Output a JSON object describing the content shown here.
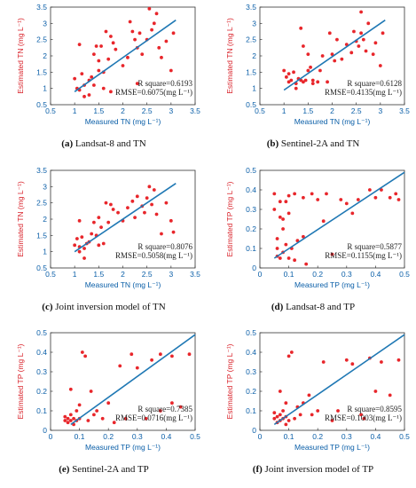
{
  "colors": {
    "points": "#e8262b",
    "fit_line": "#1f78b4",
    "axis_text": "#0b5fa8",
    "ylabel_text": "#d9222a"
  },
  "chart_data": [
    {
      "id": "a",
      "type": "scatter",
      "caption_letter": "(a)",
      "caption_text": " Landsat-8 and TN",
      "xlabel": "Measured TN (mg L⁻¹)",
      "ylabel": "Estimated TN (mg L⁻¹)",
      "xlim": [
        0.5,
        3.5
      ],
      "ylim": [
        0.5,
        3.5
      ],
      "xticks": [
        "0.5",
        "1",
        "1.5",
        "2",
        "2.5",
        "3",
        "3.5"
      ],
      "yticks": [
        "0.5",
        "1",
        "1.5",
        "2",
        "2.5",
        "3",
        "3.5"
      ],
      "fit_line": [
        [
          1.0,
          0.9
        ],
        [
          3.1,
          3.1
        ]
      ],
      "stats": [
        "R square=0.6193",
        "RMSE=0.6075(mg L⁻¹)"
      ],
      "points": [
        [
          1.0,
          1.3
        ],
        [
          1.05,
          1.0
        ],
        [
          1.1,
          0.95
        ],
        [
          1.15,
          1.45
        ],
        [
          1.2,
          1.1
        ],
        [
          1.3,
          1.25
        ],
        [
          1.35,
          1.35
        ],
        [
          1.4,
          2.05
        ],
        [
          1.45,
          2.3
        ],
        [
          1.5,
          1.55
        ],
        [
          1.5,
          1.85
        ],
        [
          1.55,
          2.3
        ],
        [
          1.6,
          1.5
        ],
        [
          1.65,
          2.75
        ],
        [
          1.7,
          1.9
        ],
        [
          1.75,
          2.6
        ],
        [
          1.8,
          2.4
        ],
        [
          1.85,
          2.2
        ],
        [
          1.1,
          2.35
        ],
        [
          1.2,
          0.75
        ],
        [
          1.3,
          0.8
        ],
        [
          1.4,
          1.1
        ],
        [
          2.0,
          1.7
        ],
        [
          2.1,
          1.95
        ],
        [
          2.15,
          3.05
        ],
        [
          2.2,
          2.75
        ],
        [
          2.25,
          2.5
        ],
        [
          2.3,
          2.25
        ],
        [
          2.35,
          2.7
        ],
        [
          2.4,
          2.05
        ],
        [
          2.5,
          2.5
        ],
        [
          2.55,
          3.45
        ],
        [
          2.6,
          2.8
        ],
        [
          2.65,
          3.0
        ],
        [
          2.7,
          3.3
        ],
        [
          2.75,
          2.25
        ],
        [
          2.8,
          1.95
        ],
        [
          2.9,
          2.45
        ],
        [
          3.0,
          1.55
        ],
        [
          3.05,
          2.7
        ],
        [
          1.75,
          0.9
        ],
        [
          1.6,
          1.0
        ],
        [
          2.3,
          1.15
        ]
      ]
    },
    {
      "id": "b",
      "type": "scatter",
      "caption_letter": "(b)",
      "caption_text": " Sentinel-2A and TN",
      "xlabel": "Measured TN (mg L⁻¹)",
      "ylabel": "Estimated TN (mg L⁻¹)",
      "xlim": [
        0.5,
        3.5
      ],
      "ylim": [
        0.5,
        3.5
      ],
      "xticks": [
        "0.5",
        "1",
        "1.5",
        "2",
        "2.5",
        "3",
        "3.5"
      ],
      "yticks": [
        "0.5",
        "1",
        "1.5",
        "2",
        "2.5",
        "3",
        "3.5"
      ],
      "fit_line": [
        [
          1.0,
          0.95
        ],
        [
          3.1,
          3.1
        ]
      ],
      "stats": [
        "R square=0.6128",
        "RMSE=0.4135(mg L⁻¹)"
      ],
      "points": [
        [
          1.0,
          1.55
        ],
        [
          1.05,
          1.35
        ],
        [
          1.1,
          1.45
        ],
        [
          1.1,
          1.2
        ],
        [
          1.15,
          1.25
        ],
        [
          1.2,
          1.5
        ],
        [
          1.25,
          1.15
        ],
        [
          1.3,
          1.3
        ],
        [
          1.35,
          1.25
        ],
        [
          1.4,
          1.2
        ],
        [
          1.45,
          1.25
        ],
        [
          1.5,
          1.55
        ],
        [
          1.5,
          2.05
        ],
        [
          1.55,
          1.65
        ],
        [
          1.6,
          1.25
        ],
        [
          1.7,
          1.2
        ],
        [
          1.75,
          1.55
        ],
        [
          1.8,
          2.0
        ],
        [
          1.9,
          1.2
        ],
        [
          2.0,
          2.05
        ],
        [
          2.05,
          1.85
        ],
        [
          2.1,
          2.5
        ],
        [
          2.2,
          1.9
        ],
        [
          2.3,
          2.35
        ],
        [
          2.4,
          2.1
        ],
        [
          2.45,
          2.75
        ],
        [
          2.5,
          2.45
        ],
        [
          2.55,
          2.3
        ],
        [
          2.6,
          2.7
        ],
        [
          2.65,
          2.5
        ],
        [
          2.7,
          2.15
        ],
        [
          2.75,
          3.0
        ],
        [
          2.85,
          2.05
        ],
        [
          2.9,
          2.4
        ],
        [
          3.0,
          1.7
        ],
        [
          3.05,
          2.7
        ],
        [
          2.6,
          3.35
        ],
        [
          1.35,
          2.85
        ],
        [
          1.4,
          2.3
        ],
        [
          1.95,
          2.7
        ],
        [
          1.25,
          1.0
        ],
        [
          1.6,
          1.15
        ]
      ]
    },
    {
      "id": "c",
      "type": "scatter",
      "caption_letter": "(c)",
      "caption_text": " Joint inversion model of TN",
      "xlabel": "Measured TN (mg L⁻¹)",
      "ylabel": "Estimated TN (mg L⁻¹)",
      "xlim": [
        0.5,
        3.5
      ],
      "ylim": [
        0.5,
        3.5
      ],
      "xticks": [
        "0.5",
        "1",
        "1.5",
        "2",
        "2.5",
        "3",
        "3.5"
      ],
      "yticks": [
        "0.5",
        "1",
        "1.5",
        "2",
        "2.5",
        "3",
        "3.5"
      ],
      "fit_line": [
        [
          1.0,
          1.0
        ],
        [
          3.1,
          3.1
        ]
      ],
      "stats": [
        "R square=0.8076",
        "RMSE=0.5058(mg L⁻¹)"
      ],
      "points": [
        [
          1.0,
          1.2
        ],
        [
          1.05,
          1.4
        ],
        [
          1.1,
          1.0
        ],
        [
          1.1,
          1.15
        ],
        [
          1.15,
          1.45
        ],
        [
          1.2,
          1.1
        ],
        [
          1.25,
          1.25
        ],
        [
          1.3,
          1.3
        ],
        [
          1.35,
          1.55
        ],
        [
          1.4,
          1.9
        ],
        [
          1.45,
          1.5
        ],
        [
          1.5,
          2.05
        ],
        [
          1.55,
          1.75
        ],
        [
          1.6,
          1.25
        ],
        [
          1.65,
          2.5
        ],
        [
          1.7,
          1.9
        ],
        [
          1.75,
          2.45
        ],
        [
          1.8,
          2.3
        ],
        [
          1.9,
          2.2
        ],
        [
          2.0,
          1.95
        ],
        [
          2.1,
          2.35
        ],
        [
          2.2,
          2.55
        ],
        [
          2.25,
          2.05
        ],
        [
          2.3,
          2.7
        ],
        [
          2.4,
          2.4
        ],
        [
          2.45,
          2.2
        ],
        [
          2.5,
          2.65
        ],
        [
          2.55,
          3.0
        ],
        [
          2.6,
          2.45
        ],
        [
          2.65,
          2.9
        ],
        [
          2.7,
          2.15
        ],
        [
          2.8,
          1.55
        ],
        [
          2.9,
          2.5
        ],
        [
          3.0,
          1.95
        ],
        [
          3.05,
          1.6
        ],
        [
          1.2,
          0.8
        ],
        [
          1.5,
          1.2
        ],
        [
          1.1,
          1.95
        ]
      ]
    },
    {
      "id": "d",
      "type": "scatter",
      "caption_letter": "(d)",
      "caption_text": " Landsat-8 and TP",
      "xlabel": "Measured TP (mg L⁻¹)",
      "ylabel": "Estimated TP (mg L⁻¹)",
      "xlim": [
        0,
        0.5
      ],
      "ylim": [
        0,
        0.5
      ],
      "xticks": [
        "0",
        "0.1",
        "0.2",
        "0.3",
        "0.4",
        "0.5"
      ],
      "yticks": [
        "0",
        "0.1",
        "0.2",
        "0.3",
        "0.4",
        "0.5"
      ],
      "fit_line": [
        [
          0.05,
          0.05
        ],
        [
          0.5,
          0.49
        ]
      ],
      "stats": [
        "R square=0.5877",
        "RMSE=0.1155(mg L⁻¹)"
      ],
      "points": [
        [
          0.05,
          0.38
        ],
        [
          0.05,
          0.3
        ],
        [
          0.06,
          0.06
        ],
        [
          0.06,
          0.1
        ],
        [
          0.07,
          0.26
        ],
        [
          0.07,
          0.34
        ],
        [
          0.07,
          0.05
        ],
        [
          0.08,
          0.08
        ],
        [
          0.08,
          0.25
        ],
        [
          0.09,
          0.34
        ],
        [
          0.09,
          0.12
        ],
        [
          0.1,
          0.05
        ],
        [
          0.1,
          0.37
        ],
        [
          0.1,
          0.28
        ],
        [
          0.11,
          0.1
        ],
        [
          0.12,
          0.38
        ],
        [
          0.12,
          0.04
        ],
        [
          0.13,
          0.14
        ],
        [
          0.15,
          0.36
        ],
        [
          0.15,
          0.16
        ],
        [
          0.16,
          0.02
        ],
        [
          0.18,
          0.38
        ],
        [
          0.2,
          0.35
        ],
        [
          0.22,
          0.24
        ],
        [
          0.23,
          0.38
        ],
        [
          0.25,
          0.07
        ],
        [
          0.28,
          0.35
        ],
        [
          0.3,
          0.33
        ],
        [
          0.32,
          0.28
        ],
        [
          0.34,
          0.35
        ],
        [
          0.38,
          0.4
        ],
        [
          0.4,
          0.36
        ],
        [
          0.42,
          0.4
        ],
        [
          0.45,
          0.36
        ],
        [
          0.47,
          0.38
        ],
        [
          0.48,
          0.35
        ],
        [
          0.06,
          0.15
        ],
        [
          0.08,
          0.2
        ]
      ]
    },
    {
      "id": "e",
      "type": "scatter",
      "caption_letter": "(e)",
      "caption_text": " Sentinel-2A and TP",
      "xlabel": "Measured TP (mg L⁻¹)",
      "ylabel": "Estimated TP (mg L⁻¹)",
      "xlim": [
        0,
        0.5
      ],
      "ylim": [
        0,
        0.5
      ],
      "xticks": [
        "0",
        "0.1",
        "0.2",
        "0.3",
        "0.4",
        "0.5"
      ],
      "yticks": [
        "0",
        "0.1",
        "0.2",
        "0.3",
        "0.4",
        "0.5"
      ],
      "fit_line": [
        [
          0.07,
          0.03
        ],
        [
          0.5,
          0.49
        ]
      ],
      "stats": [
        "R square=0.7385",
        "RMSE=0.0716(mg L⁻¹)"
      ],
      "points": [
        [
          0.05,
          0.05
        ],
        [
          0.05,
          0.07
        ],
        [
          0.06,
          0.04
        ],
        [
          0.06,
          0.06
        ],
        [
          0.07,
          0.05
        ],
        [
          0.07,
          0.08
        ],
        [
          0.08,
          0.03
        ],
        [
          0.08,
          0.06
        ],
        [
          0.09,
          0.05
        ],
        [
          0.09,
          0.1
        ],
        [
          0.1,
          0.06
        ],
        [
          0.11,
          0.4
        ],
        [
          0.12,
          0.38
        ],
        [
          0.13,
          0.05
        ],
        [
          0.14,
          0.2
        ],
        [
          0.15,
          0.08
        ],
        [
          0.16,
          0.1
        ],
        [
          0.18,
          0.06
        ],
        [
          0.2,
          0.14
        ],
        [
          0.22,
          0.04
        ],
        [
          0.24,
          0.33
        ],
        [
          0.26,
          0.06
        ],
        [
          0.28,
          0.39
        ],
        [
          0.3,
          0.32
        ],
        [
          0.35,
          0.36
        ],
        [
          0.38,
          0.39
        ],
        [
          0.42,
          0.38
        ],
        [
          0.45,
          0.12
        ],
        [
          0.48,
          0.39
        ],
        [
          0.42,
          0.14
        ],
        [
          0.38,
          0.1
        ],
        [
          0.33,
          0.06
        ],
        [
          0.07,
          0.21
        ],
        [
          0.1,
          0.13
        ]
      ]
    },
    {
      "id": "f",
      "type": "scatter",
      "caption_letter": "(f)",
      "caption_text": " Joint inversion model of TP",
      "xlabel": "Measured TP (mg L⁻¹)",
      "ylabel": "Estimated TP (mg L⁻¹)",
      "xlim": [
        0,
        0.5
      ],
      "ylim": [
        0,
        0.5
      ],
      "xticks": [
        "0",
        "0.1",
        "0.2",
        "0.3",
        "0.4",
        "0.5"
      ],
      "yticks": [
        "0",
        "0.1",
        "0.2",
        "0.3",
        "0.4",
        "0.5"
      ],
      "fit_line": [
        [
          0.05,
          0.03
        ],
        [
          0.5,
          0.49
        ]
      ],
      "stats": [
        "R square=0.8595",
        "RMSE=0.1003(mg L⁻¹)"
      ],
      "points": [
        [
          0.05,
          0.06
        ],
        [
          0.05,
          0.09
        ],
        [
          0.06,
          0.04
        ],
        [
          0.06,
          0.07
        ],
        [
          0.07,
          0.08
        ],
        [
          0.07,
          0.05
        ],
        [
          0.08,
          0.06
        ],
        [
          0.08,
          0.1
        ],
        [
          0.09,
          0.03
        ],
        [
          0.09,
          0.07
        ],
        [
          0.1,
          0.05
        ],
        [
          0.1,
          0.38
        ],
        [
          0.11,
          0.4
        ],
        [
          0.12,
          0.06
        ],
        [
          0.13,
          0.12
        ],
        [
          0.14,
          0.08
        ],
        [
          0.15,
          0.14
        ],
        [
          0.17,
          0.18
        ],
        [
          0.18,
          0.08
        ],
        [
          0.2,
          0.1
        ],
        [
          0.22,
          0.35
        ],
        [
          0.25,
          0.05
        ],
        [
          0.27,
          0.1
        ],
        [
          0.3,
          0.36
        ],
        [
          0.32,
          0.34
        ],
        [
          0.35,
          0.08
        ],
        [
          0.38,
          0.37
        ],
        [
          0.42,
          0.35
        ],
        [
          0.45,
          0.18
        ],
        [
          0.48,
          0.36
        ],
        [
          0.4,
          0.2
        ],
        [
          0.36,
          0.06
        ],
        [
          0.07,
          0.2
        ],
        [
          0.09,
          0.14
        ]
      ]
    }
  ]
}
